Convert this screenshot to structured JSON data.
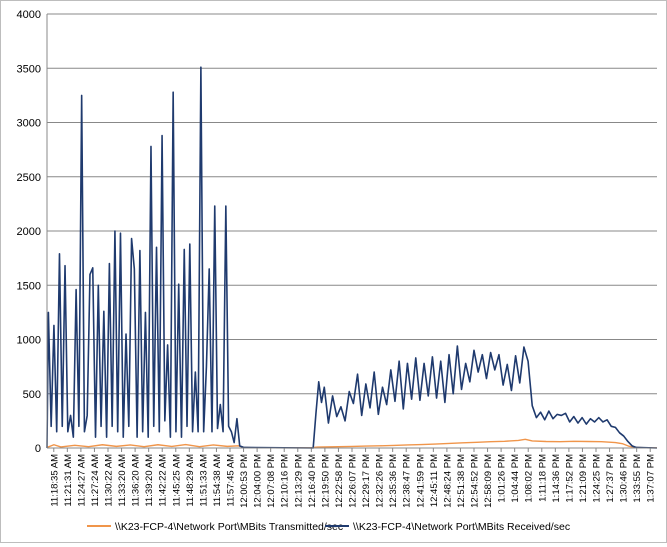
{
  "chart_data": {
    "type": "line",
    "title": "",
    "xlabel": "",
    "ylabel": "",
    "ylim": [
      0,
      4000
    ],
    "yticks": [
      0,
      500,
      1000,
      1500,
      2000,
      2500,
      3000,
      3500,
      4000
    ],
    "grid": true,
    "legend_position": "bottom",
    "x_tick_labels": [
      "11:18:35 AM",
      "11:21:31 AM",
      "11:24:27 AM",
      "11:27:24 AM",
      "11:30:22 AM",
      "11:33:20 AM",
      "11:36:20 AM",
      "11:39:20 AM",
      "11:42:22 AM",
      "11:45:25 AM",
      "11:48:29 AM",
      "11:51:33 AM",
      "11:54:38 AM",
      "11:57:45 AM",
      "12:00:53 PM",
      "12:04:00 PM",
      "12:07:08 PM",
      "12:10:16 PM",
      "12:13:29 PM",
      "12:16:40 PM",
      "12:19:50 PM",
      "12:22:58 PM",
      "12:26:07 PM",
      "12:29:17 PM",
      "12:32:26 PM",
      "12:35:36 PM",
      "12:38:47 PM",
      "12:41:59 PM",
      "12:45:11 PM",
      "12:48:24 PM",
      "12:51:38 PM",
      "12:54:52 PM",
      "12:58:09 PM",
      "1:01:26 PM",
      "1:04:44 PM",
      "1:08:02 PM",
      "1:11:18 PM",
      "1:14:36 PM",
      "1:17:52 PM",
      "1:21:09 PM",
      "1:24:25 PM",
      "1:27:37 PM",
      "1:30:46 PM",
      "1:33:55 PM",
      "1:37:07 PM"
    ],
    "x_domain": [
      0,
      44
    ],
    "series": [
      {
        "name": "\\\\K23-FCP-4\\Network Port\\MBits Transmitted/sec",
        "color": "#f0954a",
        "points": [
          [
            0,
            5
          ],
          [
            0.5,
            30
          ],
          [
            1,
            10
          ],
          [
            2,
            25
          ],
          [
            3,
            12
          ],
          [
            4,
            30
          ],
          [
            5,
            15
          ],
          [
            6,
            28
          ],
          [
            7,
            12
          ],
          [
            8,
            30
          ],
          [
            9,
            14
          ],
          [
            10,
            32
          ],
          [
            11,
            12
          ],
          [
            12,
            28
          ],
          [
            13,
            15
          ],
          [
            13.8,
            20
          ],
          [
            14.2,
            5
          ],
          [
            15,
            2
          ],
          [
            17,
            2
          ],
          [
            19,
            2
          ],
          [
            19.5,
            8
          ],
          [
            20,
            10
          ],
          [
            21,
            12
          ],
          [
            22,
            14
          ],
          [
            23,
            18
          ],
          [
            24,
            20
          ],
          [
            25,
            24
          ],
          [
            26,
            28
          ],
          [
            27,
            32
          ],
          [
            28,
            36
          ],
          [
            29,
            42
          ],
          [
            30,
            48
          ],
          [
            31,
            52
          ],
          [
            32,
            58
          ],
          [
            33,
            62
          ],
          [
            34,
            70
          ],
          [
            34.5,
            80
          ],
          [
            35,
            65
          ],
          [
            36,
            60
          ],
          [
            37,
            58
          ],
          [
            38,
            62
          ],
          [
            39,
            60
          ],
          [
            40,
            58
          ],
          [
            41,
            50
          ],
          [
            41.5,
            40
          ],
          [
            42,
            15
          ],
          [
            42.5,
            5
          ],
          [
            43,
            3
          ],
          [
            44,
            2
          ]
        ]
      },
      {
        "name": "\\\\K23-FCP-4\\Network Port\\MBits Received/sec",
        "color": "#1f3a6e",
        "points": [
          [
            0,
            0
          ],
          [
            0.1,
            1250
          ],
          [
            0.3,
            200
          ],
          [
            0.5,
            1130
          ],
          [
            0.7,
            150
          ],
          [
            0.9,
            1790
          ],
          [
            1.1,
            200
          ],
          [
            1.3,
            1680
          ],
          [
            1.5,
            150
          ],
          [
            1.7,
            300
          ],
          [
            1.9,
            100
          ],
          [
            2.1,
            1460
          ],
          [
            2.3,
            200
          ],
          [
            2.5,
            3250
          ],
          [
            2.7,
            150
          ],
          [
            2.9,
            300
          ],
          [
            3.1,
            1600
          ],
          [
            3.3,
            1660
          ],
          [
            3.5,
            100
          ],
          [
            3.7,
            1500
          ],
          [
            3.9,
            200
          ],
          [
            4.1,
            1260
          ],
          [
            4.3,
            100
          ],
          [
            4.5,
            1700
          ],
          [
            4.7,
            200
          ],
          [
            4.9,
            2000
          ],
          [
            5.1,
            150
          ],
          [
            5.3,
            1980
          ],
          [
            5.5,
            100
          ],
          [
            5.7,
            1050
          ],
          [
            5.9,
            200
          ],
          [
            6.1,
            1930
          ],
          [
            6.3,
            1650
          ],
          [
            6.5,
            100
          ],
          [
            6.7,
            1820
          ],
          [
            6.9,
            150
          ],
          [
            7.1,
            1250
          ],
          [
            7.3,
            100
          ],
          [
            7.5,
            2780
          ],
          [
            7.7,
            200
          ],
          [
            7.9,
            1850
          ],
          [
            8.1,
            150
          ],
          [
            8.3,
            2880
          ],
          [
            8.5,
            250
          ],
          [
            8.7,
            950
          ],
          [
            8.9,
            100
          ],
          [
            9.1,
            3280
          ],
          [
            9.3,
            150
          ],
          [
            9.5,
            1510
          ],
          [
            9.7,
            100
          ],
          [
            9.9,
            1830
          ],
          [
            10.1,
            200
          ],
          [
            10.3,
            1880
          ],
          [
            10.5,
            150
          ],
          [
            10.7,
            700
          ],
          [
            10.9,
            150
          ],
          [
            11.1,
            3510
          ],
          [
            11.3,
            150
          ],
          [
            11.5,
            750
          ],
          [
            11.7,
            1650
          ],
          [
            11.9,
            150
          ],
          [
            12.1,
            2230
          ],
          [
            12.3,
            180
          ],
          [
            12.5,
            400
          ],
          [
            12.7,
            150
          ],
          [
            12.9,
            2230
          ],
          [
            13.1,
            200
          ],
          [
            13.3,
            150
          ],
          [
            13.5,
            50
          ],
          [
            13.7,
            270
          ],
          [
            13.9,
            20
          ],
          [
            14.2,
            5
          ],
          [
            19.2,
            0
          ],
          [
            19.4,
            320
          ],
          [
            19.6,
            610
          ],
          [
            19.8,
            420
          ],
          [
            20,
            560
          ],
          [
            20.3,
            230
          ],
          [
            20.6,
            480
          ],
          [
            20.9,
            290
          ],
          [
            21.2,
            380
          ],
          [
            21.5,
            250
          ],
          [
            21.8,
            520
          ],
          [
            22.1,
            410
          ],
          [
            22.4,
            680
          ],
          [
            22.7,
            300
          ],
          [
            23,
            590
          ],
          [
            23.3,
            370
          ],
          [
            23.6,
            700
          ],
          [
            23.9,
            310
          ],
          [
            24.2,
            560
          ],
          [
            24.5,
            400
          ],
          [
            24.8,
            720
          ],
          [
            25.1,
            430
          ],
          [
            25.4,
            800
          ],
          [
            25.7,
            360
          ],
          [
            26,
            780
          ],
          [
            26.3,
            450
          ],
          [
            26.6,
            830
          ],
          [
            26.9,
            440
          ],
          [
            27.2,
            780
          ],
          [
            27.5,
            480
          ],
          [
            27.8,
            840
          ],
          [
            28.1,
            460
          ],
          [
            28.4,
            800
          ],
          [
            28.7,
            420
          ],
          [
            29,
            860
          ],
          [
            29.3,
            500
          ],
          [
            29.6,
            940
          ],
          [
            29.9,
            540
          ],
          [
            30.2,
            780
          ],
          [
            30.5,
            610
          ],
          [
            30.8,
            900
          ],
          [
            31.1,
            700
          ],
          [
            31.4,
            860
          ],
          [
            31.7,
            640
          ],
          [
            32,
            880
          ],
          [
            32.3,
            720
          ],
          [
            32.6,
            860
          ],
          [
            32.9,
            580
          ],
          [
            33.2,
            770
          ],
          [
            33.5,
            530
          ],
          [
            33.8,
            850
          ],
          [
            34.1,
            600
          ],
          [
            34.4,
            930
          ],
          [
            34.7,
            800
          ],
          [
            35,
            390
          ],
          [
            35.3,
            280
          ],
          [
            35.6,
            330
          ],
          [
            35.9,
            260
          ],
          [
            36.2,
            340
          ],
          [
            36.5,
            270
          ],
          [
            36.8,
            310
          ],
          [
            37.1,
            300
          ],
          [
            37.4,
            320
          ],
          [
            37.7,
            240
          ],
          [
            38,
            290
          ],
          [
            38.3,
            230
          ],
          [
            38.6,
            280
          ],
          [
            38.9,
            220
          ],
          [
            39.2,
            270
          ],
          [
            39.5,
            240
          ],
          [
            39.8,
            280
          ],
          [
            40.1,
            240
          ],
          [
            40.4,
            260
          ],
          [
            40.7,
            200
          ],
          [
            41,
            190
          ],
          [
            41.3,
            140
          ],
          [
            41.6,
            110
          ],
          [
            41.9,
            60
          ],
          [
            42.2,
            20
          ],
          [
            42.5,
            5
          ],
          [
            44,
            0
          ]
        ]
      }
    ]
  }
}
